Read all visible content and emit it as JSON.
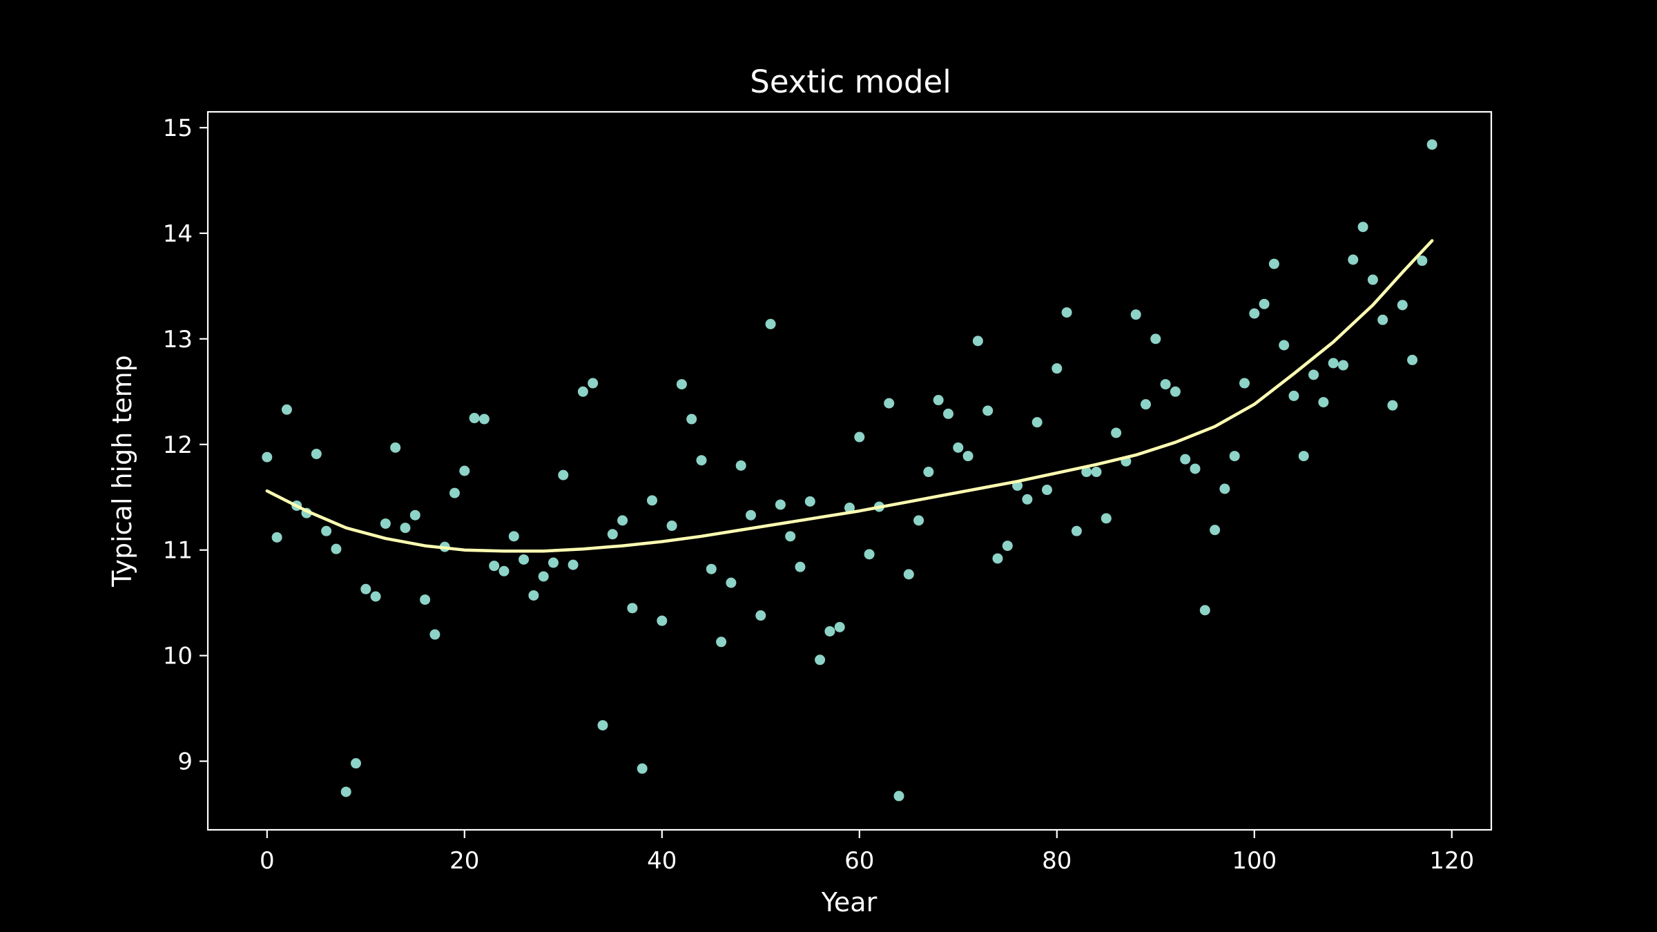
{
  "chart_data": {
    "type": "scatter",
    "title": "Sextic model",
    "xlabel": "Year",
    "ylabel": "Typical high temp",
    "xlim": [
      -6,
      124
    ],
    "ylim": [
      8.35,
      15.15
    ],
    "xticks": [
      0,
      20,
      40,
      60,
      80,
      100,
      120
    ],
    "yticks": [
      9,
      10,
      11,
      12,
      13,
      14,
      15
    ],
    "grid": false,
    "colors": {
      "background": "#000000",
      "axes": "#ffffff",
      "points": "#8dd3c7",
      "fit_line": "#ffffb3"
    },
    "series": [
      {
        "kind": "scatter",
        "x": [
          0,
          1,
          2,
          3,
          4,
          5,
          6,
          7,
          8,
          9,
          10,
          11,
          12,
          13,
          14,
          15,
          16,
          17,
          18,
          19,
          20,
          21,
          22,
          23,
          24,
          25,
          26,
          27,
          28,
          29,
          30,
          31,
          32,
          33,
          34,
          35,
          36,
          37,
          38,
          39,
          40,
          41,
          42,
          43,
          44,
          45,
          46,
          47,
          48,
          49,
          50,
          51,
          52,
          53,
          54,
          55,
          56,
          57,
          58,
          59,
          60,
          61,
          62,
          63,
          64,
          65,
          66,
          67,
          68,
          69,
          70,
          71,
          72,
          73,
          74,
          75,
          76,
          77,
          78,
          79,
          80,
          81,
          82,
          83,
          84,
          85,
          86,
          87,
          88,
          89,
          90,
          91,
          92,
          93,
          94,
          95,
          96,
          97,
          98,
          99,
          100,
          101,
          102,
          103,
          104,
          105,
          106,
          107,
          108,
          109,
          110,
          111,
          112,
          113,
          114,
          115,
          116,
          117,
          118
        ],
        "y": [
          11.88,
          11.12,
          12.33,
          11.42,
          11.35,
          11.91,
          11.18,
          11.01,
          8.71,
          8.98,
          10.63,
          10.56,
          11.25,
          11.97,
          11.21,
          11.33,
          10.53,
          10.2,
          11.03,
          11.54,
          11.75,
          12.25,
          12.24,
          10.85,
          10.8,
          11.13,
          10.91,
          10.57,
          10.75,
          10.88,
          11.71,
          10.86,
          12.5,
          12.58,
          9.34,
          11.15,
          11.28,
          10.45,
          8.93,
          11.47,
          10.33,
          11.23,
          12.57,
          12.24,
          11.85,
          10.82,
          10.13,
          10.69,
          11.8,
          11.33,
          10.38,
          13.14,
          11.43,
          11.13,
          10.84,
          11.46,
          9.96,
          10.23,
          10.27,
          11.4,
          12.07,
          10.96,
          11.41,
          12.39,
          8.67,
          10.77,
          11.28,
          11.74,
          12.42,
          12.29,
          11.97,
          11.89,
          12.98,
          12.32,
          10.92,
          11.04,
          11.61,
          11.48,
          12.21,
          11.57,
          12.72,
          13.25,
          11.18,
          11.74,
          11.74,
          11.3,
          12.11,
          11.84,
          13.23,
          12.38,
          13.0,
          12.57,
          12.5,
          11.86,
          11.77,
          10.43,
          11.19,
          11.58,
          11.89,
          12.58,
          13.24,
          13.33,
          13.71,
          12.94,
          12.46,
          11.89,
          12.66,
          12.4,
          12.77,
          12.75,
          13.75,
          14.06,
          13.56,
          13.18,
          12.37,
          13.32,
          12.8,
          13.74,
          14.84
        ]
      },
      {
        "kind": "line",
        "x": [
          0,
          4,
          8,
          12,
          16,
          20,
          24,
          28,
          32,
          36,
          40,
          44,
          48,
          52,
          56,
          60,
          64,
          68,
          72,
          76,
          80,
          84,
          88,
          92,
          96,
          100,
          104,
          108,
          112,
          115,
          118
        ],
        "y": [
          11.56,
          11.37,
          11.21,
          11.11,
          11.04,
          11.0,
          10.99,
          10.99,
          11.01,
          11.04,
          11.08,
          11.13,
          11.19,
          11.25,
          11.31,
          11.37,
          11.44,
          11.51,
          11.58,
          11.65,
          11.73,
          11.81,
          11.9,
          12.02,
          12.17,
          12.38,
          12.67,
          12.97,
          13.32,
          13.63,
          13.93
        ]
      }
    ]
  }
}
